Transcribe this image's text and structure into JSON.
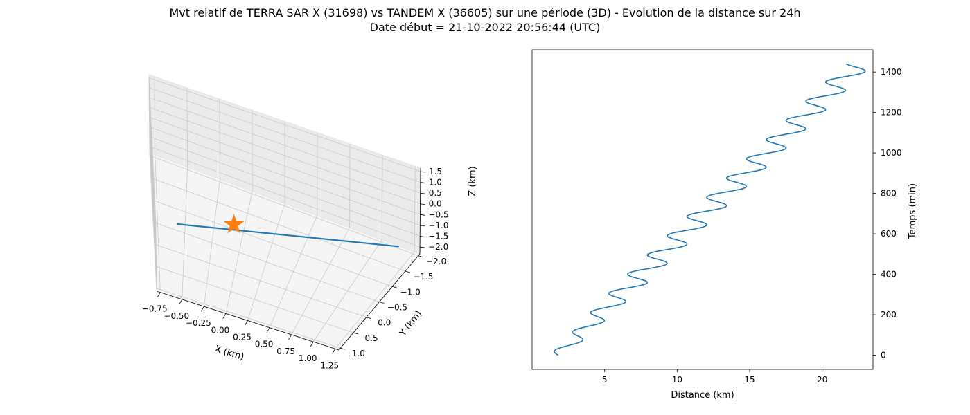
{
  "figure": {
    "title_line1": "Mvt relatif de TERRA SAR X (31698) vs TANDEM X (36605) sur une période (3D) - Evolution de la distance sur 24h",
    "title_line2": "Date début = 21-10-2022 20:56:44 (UTC)"
  },
  "chart_data": [
    {
      "type": "line3d",
      "xlabel": "X (km)",
      "ylabel": "Y (km)",
      "zlabel": "Z (km)",
      "x_ticks": [
        "−0.75",
        "−0.50",
        "−0.25",
        "0.00",
        "0.25",
        "0.50",
        "0.75",
        "1.00",
        "1.25"
      ],
      "y_ticks": [
        "−2.0",
        "−1.5",
        "−1.0",
        "−0.5",
        "0.0",
        "0.5",
        "1.0"
      ],
      "z_ticks": [
        "−2.0",
        "−1.5",
        "−1.0",
        "−0.5",
        "0.0",
        "0.5",
        "1.0",
        "1.5"
      ],
      "xlim": [
        -0.8,
        1.35
      ],
      "ylim": [
        -2.15,
        1.35
      ],
      "zlim": [
        -2.2,
        1.9
      ],
      "trajectory": {
        "color": "#1f77b4",
        "start": {
          "x": -0.55,
          "y": 1.15,
          "z": 1.6
        },
        "end": {
          "x": 1.2,
          "y": -2.05,
          "z": -2.05
        }
      },
      "marker": {
        "shape": "star",
        "color": "#ff7f0e",
        "x": 0.0,
        "y": 0.0,
        "z": 0.0
      },
      "grid": true
    },
    {
      "type": "line",
      "xlabel": "Distance (km)",
      "ylabel": "Temps (min)",
      "x_ticks": [
        5,
        10,
        15,
        20
      ],
      "y_ticks": [
        0,
        200,
        400,
        600,
        800,
        1000,
        1200,
        1400
      ],
      "xlim": [
        0,
        23.5
      ],
      "ylim": [
        -70,
        1510
      ],
      "y_axis_side": "right",
      "series": [
        {
          "color": "#1f77b4",
          "time_min": [
            0,
            1440
          ],
          "distance_km_trend": [
            1.8,
            22.5
          ],
          "oscillation_amplitude_km": 1.0,
          "oscillation_period_min": 95
        }
      ]
    }
  ]
}
